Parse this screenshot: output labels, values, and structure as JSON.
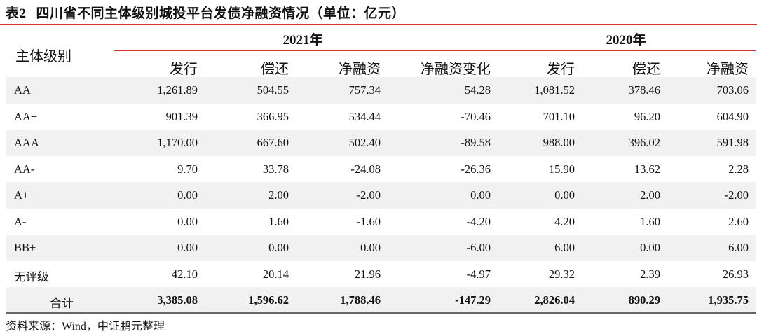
{
  "title": {
    "number": "表2",
    "text": "四川省不同主体级别城投平台发债净融资情况（单位：亿元）"
  },
  "header": {
    "row_label": "主体级别",
    "years": [
      "2021年",
      "2020年"
    ],
    "columns": [
      "发行",
      "偿还",
      "净融资",
      "净融资变化",
      "发行",
      "偿还",
      "净融资"
    ]
  },
  "rows": [
    {
      "label": "AA",
      "values": [
        "1,261.89",
        "504.55",
        "757.34",
        "54.28",
        "1,081.52",
        "378.46",
        "703.06"
      ]
    },
    {
      "label": "AA+",
      "values": [
        "901.39",
        "366.95",
        "534.44",
        "-70.46",
        "701.10",
        "96.20",
        "604.90"
      ]
    },
    {
      "label": "AAA",
      "values": [
        "1,170.00",
        "667.60",
        "502.40",
        "-89.58",
        "988.00",
        "396.02",
        "591.98"
      ]
    },
    {
      "label": "AA-",
      "values": [
        "9.70",
        "33.78",
        "-24.08",
        "-26.36",
        "15.90",
        "13.62",
        "2.28"
      ]
    },
    {
      "label": "A+",
      "values": [
        "0.00",
        "2.00",
        "-2.00",
        "0.00",
        "0.00",
        "2.00",
        "-2.00"
      ]
    },
    {
      "label": "A-",
      "values": [
        "0.00",
        "1.60",
        "-1.60",
        "-4.20",
        "4.20",
        "1.60",
        "2.60"
      ]
    },
    {
      "label": "BB+",
      "values": [
        "0.00",
        "0.00",
        "0.00",
        "-6.00",
        "6.00",
        "0.00",
        "6.00"
      ]
    },
    {
      "label": "无评级",
      "values": [
        "42.10",
        "20.14",
        "21.96",
        "-4.97",
        "29.32",
        "2.39",
        "26.93"
      ]
    }
  ],
  "total": {
    "label": "合计",
    "values": [
      "3,385.08",
      "1,596.62",
      "1,788.46",
      "-147.29",
      "2,826.04",
      "890.29",
      "1,935.75"
    ]
  },
  "source": "资料来源：Wind，中证鹏元整理",
  "colors": {
    "rule": "#d9312b",
    "stripe": "#f1f1f1"
  }
}
